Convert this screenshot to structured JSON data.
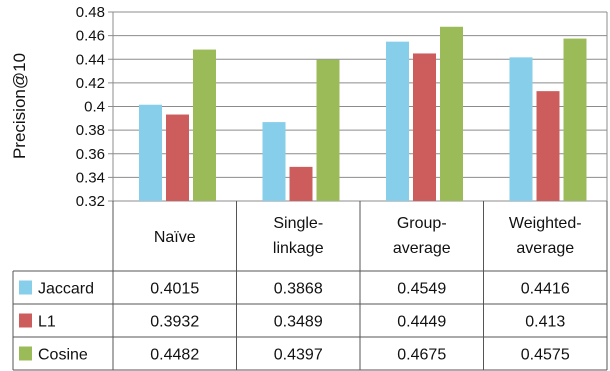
{
  "chart_data": {
    "type": "bar",
    "ylabel": "Precision@10",
    "ylim": [
      0.32,
      0.48
    ],
    "ytick_step": 0.02,
    "y_ticks": [
      "0.32",
      "0.34",
      "0.36",
      "0.38",
      "0.4",
      "0.42",
      "0.44",
      "0.46",
      "0.48"
    ],
    "grid": "horizontal",
    "categories": [
      {
        "line1": "Naïve",
        "line2": ""
      },
      {
        "line1": "Single-",
        "line2": "linkage"
      },
      {
        "line1": "Group-",
        "line2": "average"
      },
      {
        "line1": "Weighted-",
        "line2": "average"
      }
    ],
    "series": [
      {
        "name": "Jaccard",
        "color": "#87ceeb",
        "values": [
          0.4015,
          0.3868,
          0.4549,
          0.4416
        ],
        "labels": [
          "0.4015",
          "0.3868",
          "0.4549",
          "0.4416"
        ]
      },
      {
        "name": "L1",
        "color": "#cd5c5c",
        "values": [
          0.3932,
          0.3489,
          0.4449,
          0.413
        ],
        "labels": [
          "0.3932",
          "0.3489",
          "0.4449",
          "0.413"
        ]
      },
      {
        "name": "Cosine",
        "color": "#9bbb59",
        "values": [
          0.4482,
          0.4397,
          0.4675,
          0.4575
        ],
        "labels": [
          "0.4482",
          "0.4397",
          "0.4675",
          "0.4575"
        ]
      }
    ],
    "legend": "data-table"
  }
}
